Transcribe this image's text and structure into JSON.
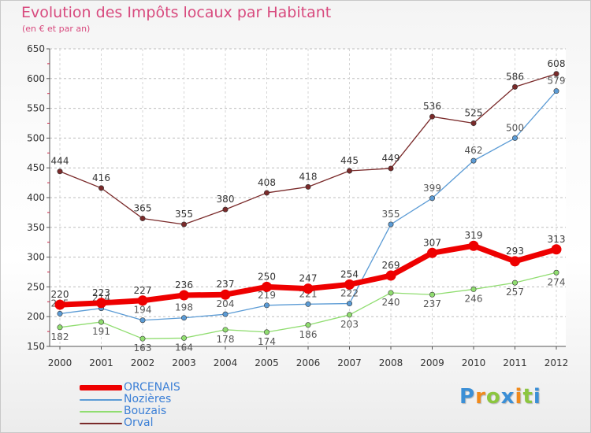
{
  "title": "Evolution des Impôts locaux par Habitant",
  "subtitle": "(en € et par an)",
  "logo": {
    "text": "Proxiti",
    "letters": [
      {
        "ch": "P",
        "color": "#3b8fd6"
      },
      {
        "ch": "r",
        "color": "#f08a1c"
      },
      {
        "ch": "o",
        "color": "#8cc63f"
      },
      {
        "ch": "x",
        "color": "#3b8fd6"
      },
      {
        "ch": "i",
        "color": "#f08a1c"
      },
      {
        "ch": "t",
        "color": "#8cc63f"
      },
      {
        "ch": "i",
        "color": "#3b8fd6"
      }
    ]
  },
  "chart_data": {
    "type": "line",
    "title": "Evolution des Impôts locaux par Habitant",
    "subtitle": "(en € et par an)",
    "x": [
      "2000",
      "2001",
      "2002",
      "2003",
      "2004",
      "2005",
      "2006",
      "2007",
      "2008",
      "2009",
      "2010",
      "2011",
      "2012"
    ],
    "ylim": [
      150,
      650
    ],
    "yticks": [
      150,
      200,
      250,
      300,
      350,
      400,
      450,
      500,
      550,
      600,
      650
    ],
    "grid": true,
    "legend_position": "bottom-left",
    "series": [
      {
        "name": "ORCENAIS",
        "color": "#ee0000",
        "label_color": "#333333",
        "values": [
          220,
          223,
          227,
          236,
          237,
          250,
          247,
          254,
          269,
          307,
          319,
          293,
          313
        ]
      },
      {
        "name": "Nozières",
        "color": "#5b9bd5",
        "label_color": "#555555",
        "values": [
          205,
          214,
          194,
          198,
          204,
          219,
          221,
          222,
          355,
          399,
          462,
          500,
          579
        ]
      },
      {
        "name": "Bouzais",
        "color": "#90dd70",
        "label_color": "#555555",
        "values": [
          182,
          191,
          163,
          164,
          178,
          174,
          186,
          203,
          240,
          237,
          246,
          257,
          274
        ]
      },
      {
        "name": "Orval",
        "color": "#7a2a2a",
        "label_color": "#333333",
        "values": [
          444,
          416,
          365,
          355,
          380,
          408,
          418,
          445,
          449,
          536,
          525,
          586,
          608
        ]
      }
    ]
  }
}
